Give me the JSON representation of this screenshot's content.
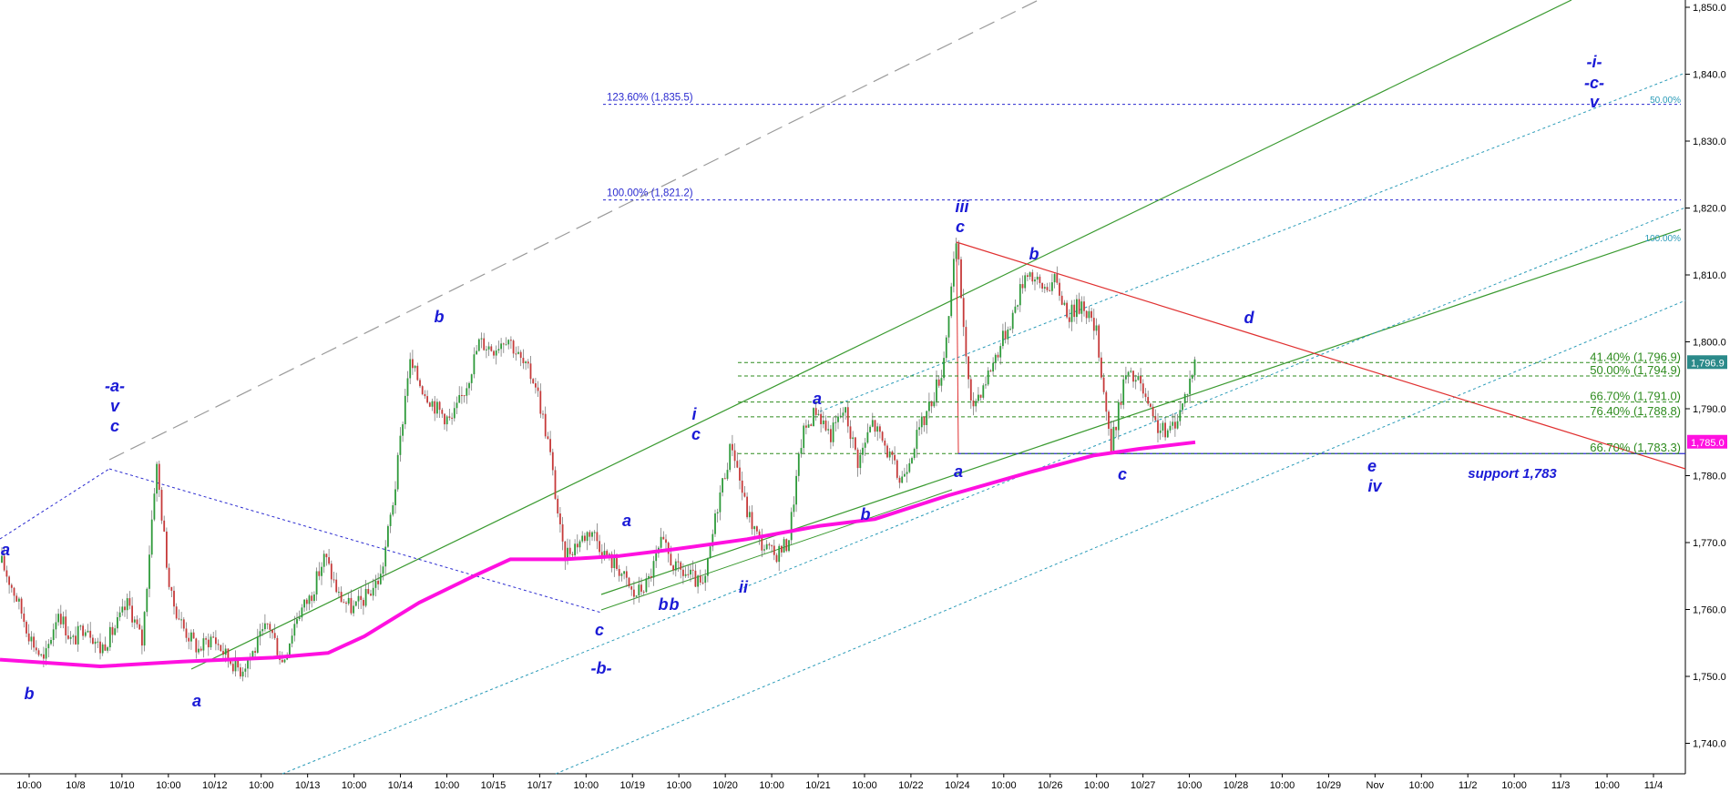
{
  "chart_data": {
    "type": "candlestick",
    "title": "",
    "x_axis": {
      "tick_labels": [
        "10:00",
        "10/8",
        "10/10",
        "10:00",
        "10/12",
        "10:00",
        "10/13",
        "10:00",
        "10/14",
        "10:00",
        "10/15",
        "10/17",
        "10:00",
        "10/19",
        "10:00",
        "10/20",
        "10:00",
        "10/21",
        "10:00",
        "10/22",
        "10/24",
        "10:00",
        "10/26",
        "10:00",
        "10/27",
        "10:00",
        "10/28",
        "10:00",
        "10/29",
        "Nov",
        "10:00",
        "11/2",
        "10:00",
        "11/3",
        "10:00",
        "11/4"
      ]
    },
    "y_axis": {
      "range": [
        1737,
        1851
      ],
      "tick_labels": [
        "1,740.0",
        "1,750.0",
        "1,760.0",
        "1,770.0",
        "1,780.0",
        "1,790.0",
        "1,800.0",
        "1,810.0",
        "1,820.0",
        "1,830.0",
        "1,840.0",
        "1,850.0"
      ]
    },
    "price_path": [
      1767,
      1762,
      1756,
      1752,
      1760,
      1755,
      1758,
      1754,
      1757,
      1761,
      1755,
      1782,
      1762,
      1757,
      1754,
      1756,
      1753,
      1751,
      1754,
      1758,
      1752,
      1759,
      1762,
      1768,
      1762,
      1760,
      1762,
      1765,
      1778,
      1797,
      1793,
      1790,
      1788,
      1793,
      1800,
      1799,
      1801,
      1797,
      1794,
      1784,
      1768,
      1770,
      1772,
      1768,
      1766,
      1762,
      1764,
      1770,
      1766,
      1765,
      1763,
      1776,
      1785,
      1775,
      1770,
      1768,
      1770,
      1786,
      1790,
      1786,
      1790,
      1782,
      1788,
      1784,
      1779,
      1785,
      1790,
      1796,
      1815,
      1790,
      1794,
      1799,
      1804,
      1811,
      1808,
      1809,
      1804,
      1806,
      1801,
      1784,
      1795,
      1794,
      1788,
      1786,
      1790,
      1797
    ],
    "current_price": "1,796.9",
    "ma_price": "1,785.0",
    "fib_levels_blue": [
      {
        "label": "123.60% (1,835.5)",
        "value": 1835.5
      },
      {
        "label": "100.00% (1,821.2)",
        "value": 1821.2
      }
    ],
    "fib_levels_green": [
      {
        "label": "41.40% (1,796.9)",
        "value": 1796.9
      },
      {
        "label": "50.00% (1,794.9)",
        "value": 1794.9
      },
      {
        "label": "66.70% (1,791.0)",
        "value": 1791.0
      },
      {
        "label": "76.40% (1,788.8)",
        "value": 1788.8
      },
      {
        "label": "66.70% (1,783.3)",
        "value": 1783.3
      }
    ],
    "channel_labels": [
      "50.00%",
      "100.00%"
    ],
    "support_label": "support 1,783",
    "wave_labels": [
      "a",
      "b",
      "-a-",
      "v",
      "c",
      "a",
      "b",
      "b",
      "c",
      "-b-",
      "a",
      "b",
      "i",
      "c",
      "ii",
      "a",
      "b",
      "iii",
      "c",
      "a",
      "b",
      "c",
      "d",
      "e",
      "iv",
      "-i-",
      "-c-",
      "v"
    ]
  }
}
